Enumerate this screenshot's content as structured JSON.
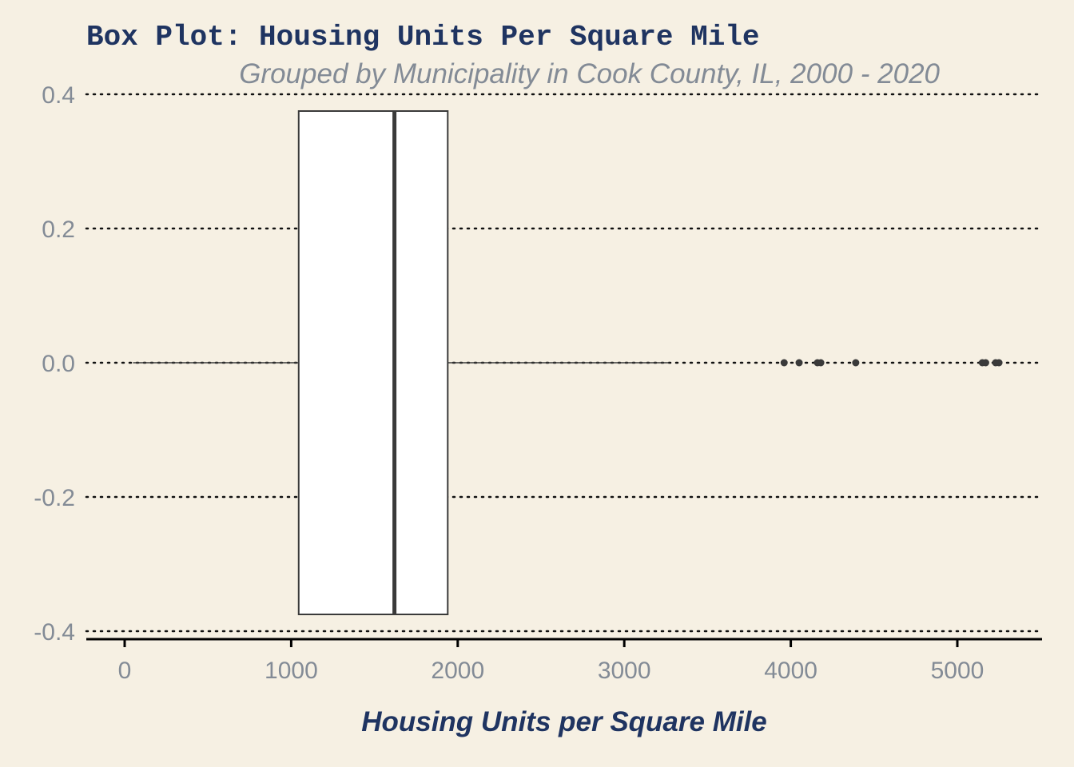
{
  "colors": {
    "background": "#f6f0e3",
    "title": "#1f3461",
    "subtitle": "#838b96",
    "ticks": "#838b96",
    "box_fill": "#ffffff",
    "box_stroke": "#3a3a3a",
    "grid": "#111111",
    "axis": "#000000"
  },
  "chart_data": {
    "type": "box",
    "orientation": "horizontal",
    "title": "Box Plot: Housing Units Per Square Mile",
    "subtitle": "Grouped by Municipality in Cook County, IL, 2000 - 2020",
    "xlabel": "Housing Units per Square Mile",
    "ylabel": "",
    "xlim": [
      -230,
      5500
    ],
    "ylim": [
      -0.41,
      0.4
    ],
    "x_ticks": [
      0,
      1000,
      2000,
      3000,
      4000,
      5000
    ],
    "x_tick_labels": [
      "0",
      "1000",
      "2000",
      "3000",
      "4000",
      "5000"
    ],
    "y_ticks": [
      0.4,
      0.2,
      0.0,
      -0.2,
      -0.4
    ],
    "y_tick_labels": [
      "0.4",
      "0.2",
      "0.0",
      "-0.2",
      "-0.4"
    ],
    "grid": "horizontal dotted",
    "box": {
      "whisker_low": 50,
      "q1": 1045,
      "median": 1620,
      "q3": 1940,
      "whisker_high": 3270,
      "y_center": 0.0,
      "half_height": 0.375
    },
    "outliers": [
      3960,
      4050,
      4160,
      4180,
      4390,
      5150,
      5170,
      5230,
      5250
    ]
  }
}
